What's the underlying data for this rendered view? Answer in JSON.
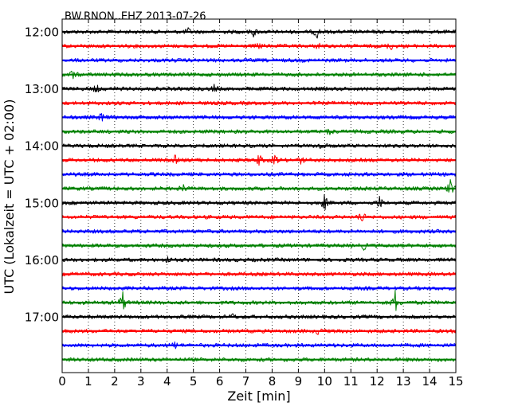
{
  "chart_data": {
    "type": "line",
    "title": "BW.RNON..EHZ 2013-07-26",
    "xlabel": "Zeit  [min]",
    "ylabel": "UTC (Lokalzeit = UTC + 02:00)",
    "xlim": [
      0,
      15
    ],
    "x_ticks": [
      "0",
      "1",
      "2",
      "3",
      "4",
      "5",
      "6",
      "7",
      "8",
      "9",
      "10",
      "11",
      "12",
      "13",
      "14",
      "15"
    ],
    "y_ticks": [
      "12:00",
      "13:00",
      "14:00",
      "15:00",
      "16:00",
      "17:00"
    ],
    "grid": "vertical dotted at each minute",
    "color_cycle": [
      "#000000",
      "#ff0000",
      "#0000ff",
      "#008000"
    ],
    "traces": [
      {
        "start": "12:00",
        "color": "#000000",
        "events": [
          {
            "t": 4.8,
            "amp": 0.3
          },
          {
            "t": 7.3,
            "amp": 0.4
          },
          {
            "t": 9.7,
            "amp": 0.55
          }
        ]
      },
      {
        "start": "12:15",
        "color": "#ff0000",
        "events": [
          {
            "t": 7.5,
            "amp": 0.25
          },
          {
            "t": 9.8,
            "amp": 0.3
          },
          {
            "t": 12.5,
            "amp": 0.35
          }
        ]
      },
      {
        "start": "12:30",
        "color": "#0000ff",
        "events": []
      },
      {
        "start": "12:45",
        "color": "#008000",
        "events": [
          {
            "t": 0.4,
            "amp": 0.45
          }
        ]
      },
      {
        "start": "13:00",
        "color": "#000000",
        "events": [
          {
            "t": 1.3,
            "amp": 0.35
          },
          {
            "t": 5.8,
            "amp": 0.35
          }
        ]
      },
      {
        "start": "13:15",
        "color": "#ff0000",
        "events": []
      },
      {
        "start": "13:30",
        "color": "#0000ff",
        "events": [
          {
            "t": 1.5,
            "amp": 0.4
          }
        ]
      },
      {
        "start": "13:45",
        "color": "#008000",
        "events": [
          {
            "t": 10.2,
            "amp": 0.3
          }
        ]
      },
      {
        "start": "14:00",
        "color": "#000000",
        "events": [
          {
            "t": 9.85,
            "amp": 0.45
          }
        ]
      },
      {
        "start": "14:15",
        "color": "#ff0000",
        "events": [
          {
            "t": 4.3,
            "amp": 0.35
          },
          {
            "t": 7.5,
            "amp": 0.55
          },
          {
            "t": 8.1,
            "amp": 0.5
          },
          {
            "t": 9.1,
            "amp": 0.35
          }
        ]
      },
      {
        "start": "14:30",
        "color": "#0000ff",
        "events": []
      },
      {
        "start": "14:45",
        "color": "#008000",
        "events": [
          {
            "t": 4.6,
            "amp": 0.35
          },
          {
            "t": 14.8,
            "amp": 0.8
          }
        ]
      },
      {
        "start": "15:00",
        "color": "#000000",
        "events": [
          {
            "t": 10.0,
            "amp": 0.75
          },
          {
            "t": 12.1,
            "amp": 0.6
          }
        ]
      },
      {
        "start": "15:15",
        "color": "#ff0000",
        "events": [
          {
            "t": 11.4,
            "amp": 0.65
          }
        ]
      },
      {
        "start": "15:30",
        "color": "#0000ff",
        "events": []
      },
      {
        "start": "15:45",
        "color": "#008000",
        "events": [
          {
            "t": 11.5,
            "amp": 0.3
          }
        ]
      },
      {
        "start": "16:00",
        "color": "#000000",
        "events": [
          {
            "t": 4.0,
            "amp": 0.3
          }
        ]
      },
      {
        "start": "16:15",
        "color": "#ff0000",
        "events": []
      },
      {
        "start": "16:30",
        "color": "#0000ff",
        "events": []
      },
      {
        "start": "16:45",
        "color": "#008000",
        "events": [
          {
            "t": 2.3,
            "amp": 1.1
          },
          {
            "t": 12.7,
            "amp": 1.2
          }
        ]
      },
      {
        "start": "17:00",
        "color": "#000000",
        "events": [
          {
            "t": 6.5,
            "amp": 0.25
          }
        ]
      },
      {
        "start": "17:15",
        "color": "#ff0000",
        "events": [
          {
            "t": 9.8,
            "amp": 0.35
          }
        ]
      },
      {
        "start": "17:30",
        "color": "#0000ff",
        "events": [
          {
            "t": 4.3,
            "amp": 0.3
          }
        ]
      },
      {
        "start": "17:45",
        "color": "#008000",
        "events": []
      }
    ]
  }
}
